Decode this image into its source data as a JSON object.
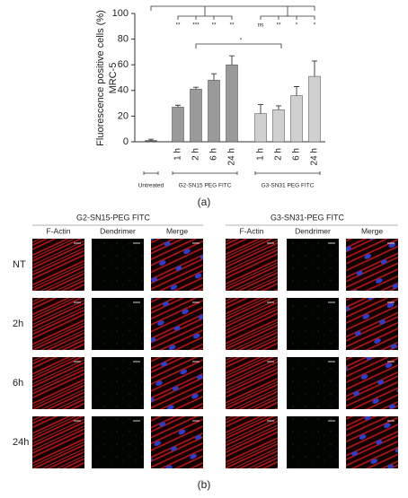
{
  "chart_data": {
    "type": "bar",
    "y_label": [
      "Fluorescence positive cells (%)",
      "MRC-5"
    ],
    "categories": [
      null,
      "1 h",
      "2 h",
      "6 h",
      "24 h",
      "1 h",
      "2 h",
      "6 h",
      "24 h"
    ],
    "values": [
      1,
      27,
      41,
      48,
      60,
      22,
      25,
      36,
      51
    ],
    "errors": [
      1,
      1.5,
      1.5,
      5,
      7,
      7,
      3,
      7,
      12
    ],
    "colors": [
      "#555555",
      "#9a9a9a",
      "#9a9a9a",
      "#9a9a9a",
      "#9a9a9a",
      "#d0d0d0",
      "#d0d0d0",
      "#d0d0d0",
      "#d0d0d0"
    ],
    "groups": [
      "Untreated",
      "G2-SN15 PEG FITC",
      "G3-SN31 PEG FITC"
    ],
    "annotations": [
      "**",
      "***",
      "**",
      "**",
      "ns",
      "**",
      "*",
      "*",
      "*"
    ],
    "ylim": [
      0,
      100
    ],
    "yticks": [
      0,
      20,
      40,
      60,
      80,
      100
    ],
    "caption": "(a)"
  },
  "figure_b": {
    "groups": [
      {
        "title": "G2-SN15-PEG FITC",
        "columns": [
          "F-Actin",
          "Dendrimer",
          "Merge"
        ]
      },
      {
        "title": "G3-SN31-PEG FITC",
        "columns": [
          "F-Actin",
          "Dendrimer",
          "Merge"
        ]
      }
    ],
    "rows": [
      "NT",
      "2h",
      "6h",
      "24h"
    ],
    "caption": "(b)"
  }
}
